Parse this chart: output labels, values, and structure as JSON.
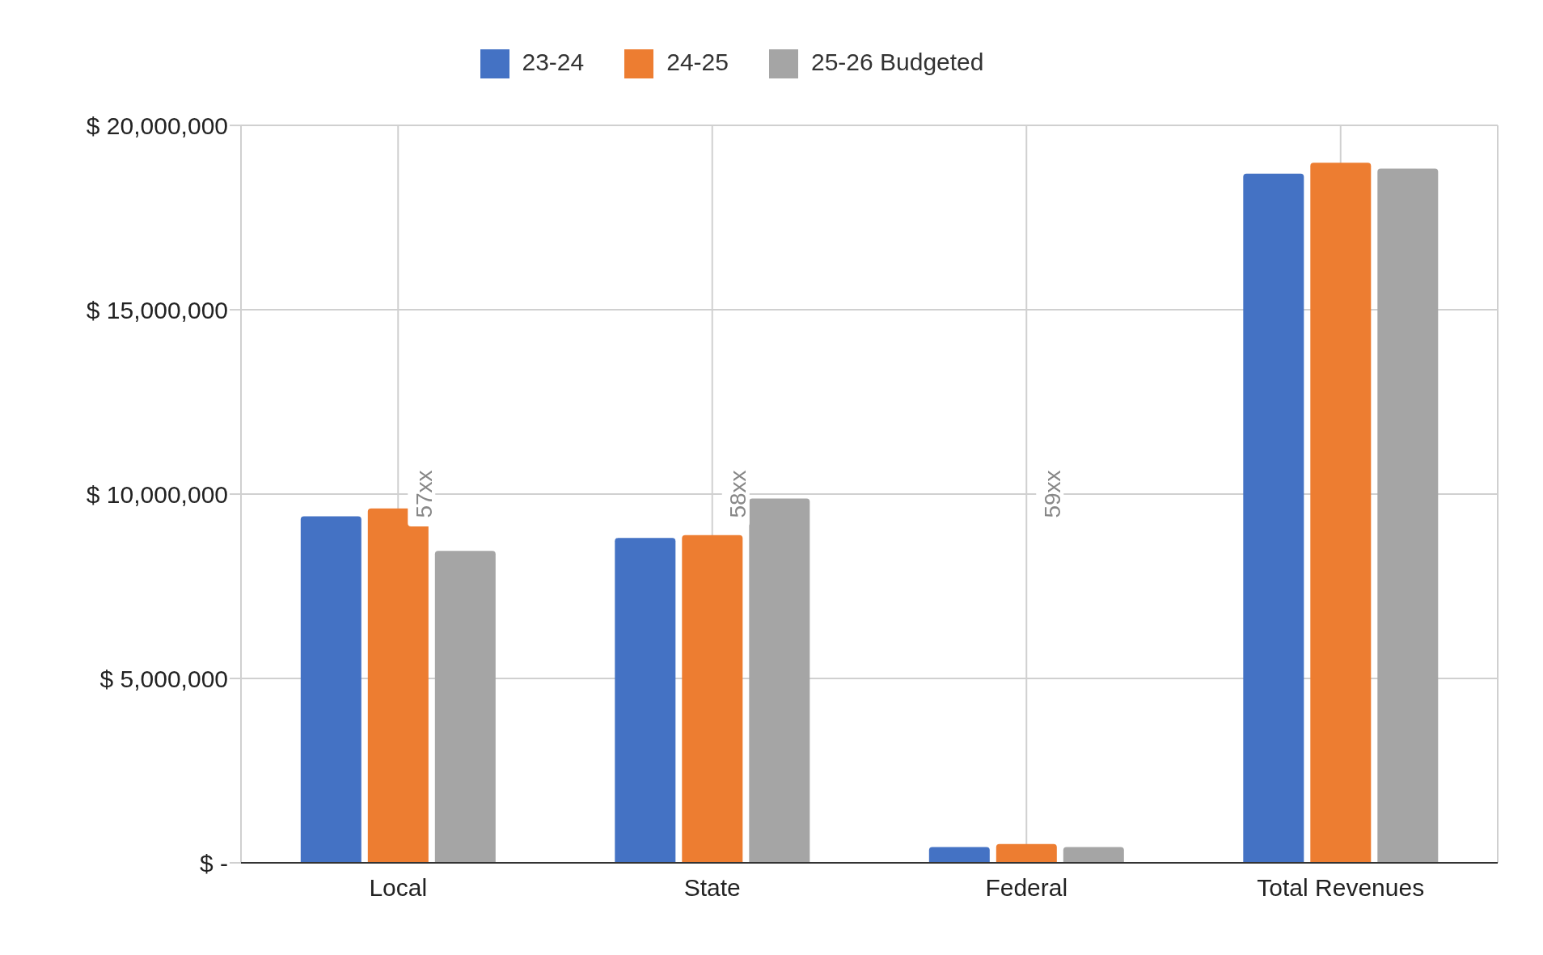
{
  "chart_data": {
    "type": "bar",
    "categories": [
      "Local",
      "State",
      "Federal",
      "Total Revenues"
    ],
    "series": [
      {
        "name": "23-24",
        "color": "#4472c4",
        "values": [
          9400000,
          8810000,
          430000,
          18690000
        ]
      },
      {
        "name": "24-25",
        "color": "#ed7d31",
        "values": [
          9610000,
          8890000,
          510000,
          18990000
        ]
      },
      {
        "name": "25-26 Budgeted",
        "color": "#a5a5a5",
        "values": [
          8460000,
          9880000,
          430000,
          18830000
        ]
      }
    ],
    "ylim": [
      0,
      20000000
    ],
    "yticks": [
      {
        "value": 0,
        "label": "$ -"
      },
      {
        "value": 5000000,
        "label": "$ 5,000,000"
      },
      {
        "value": 10000000,
        "label": "$ 10,000,000"
      },
      {
        "value": 15000000,
        "label": "$ 15,000,000"
      },
      {
        "value": 20000000,
        "label": "$ 20,000,000"
      }
    ],
    "annotations": [
      "57xx",
      "58xx",
      "59xx"
    ],
    "grid": true,
    "legend": "top"
  }
}
